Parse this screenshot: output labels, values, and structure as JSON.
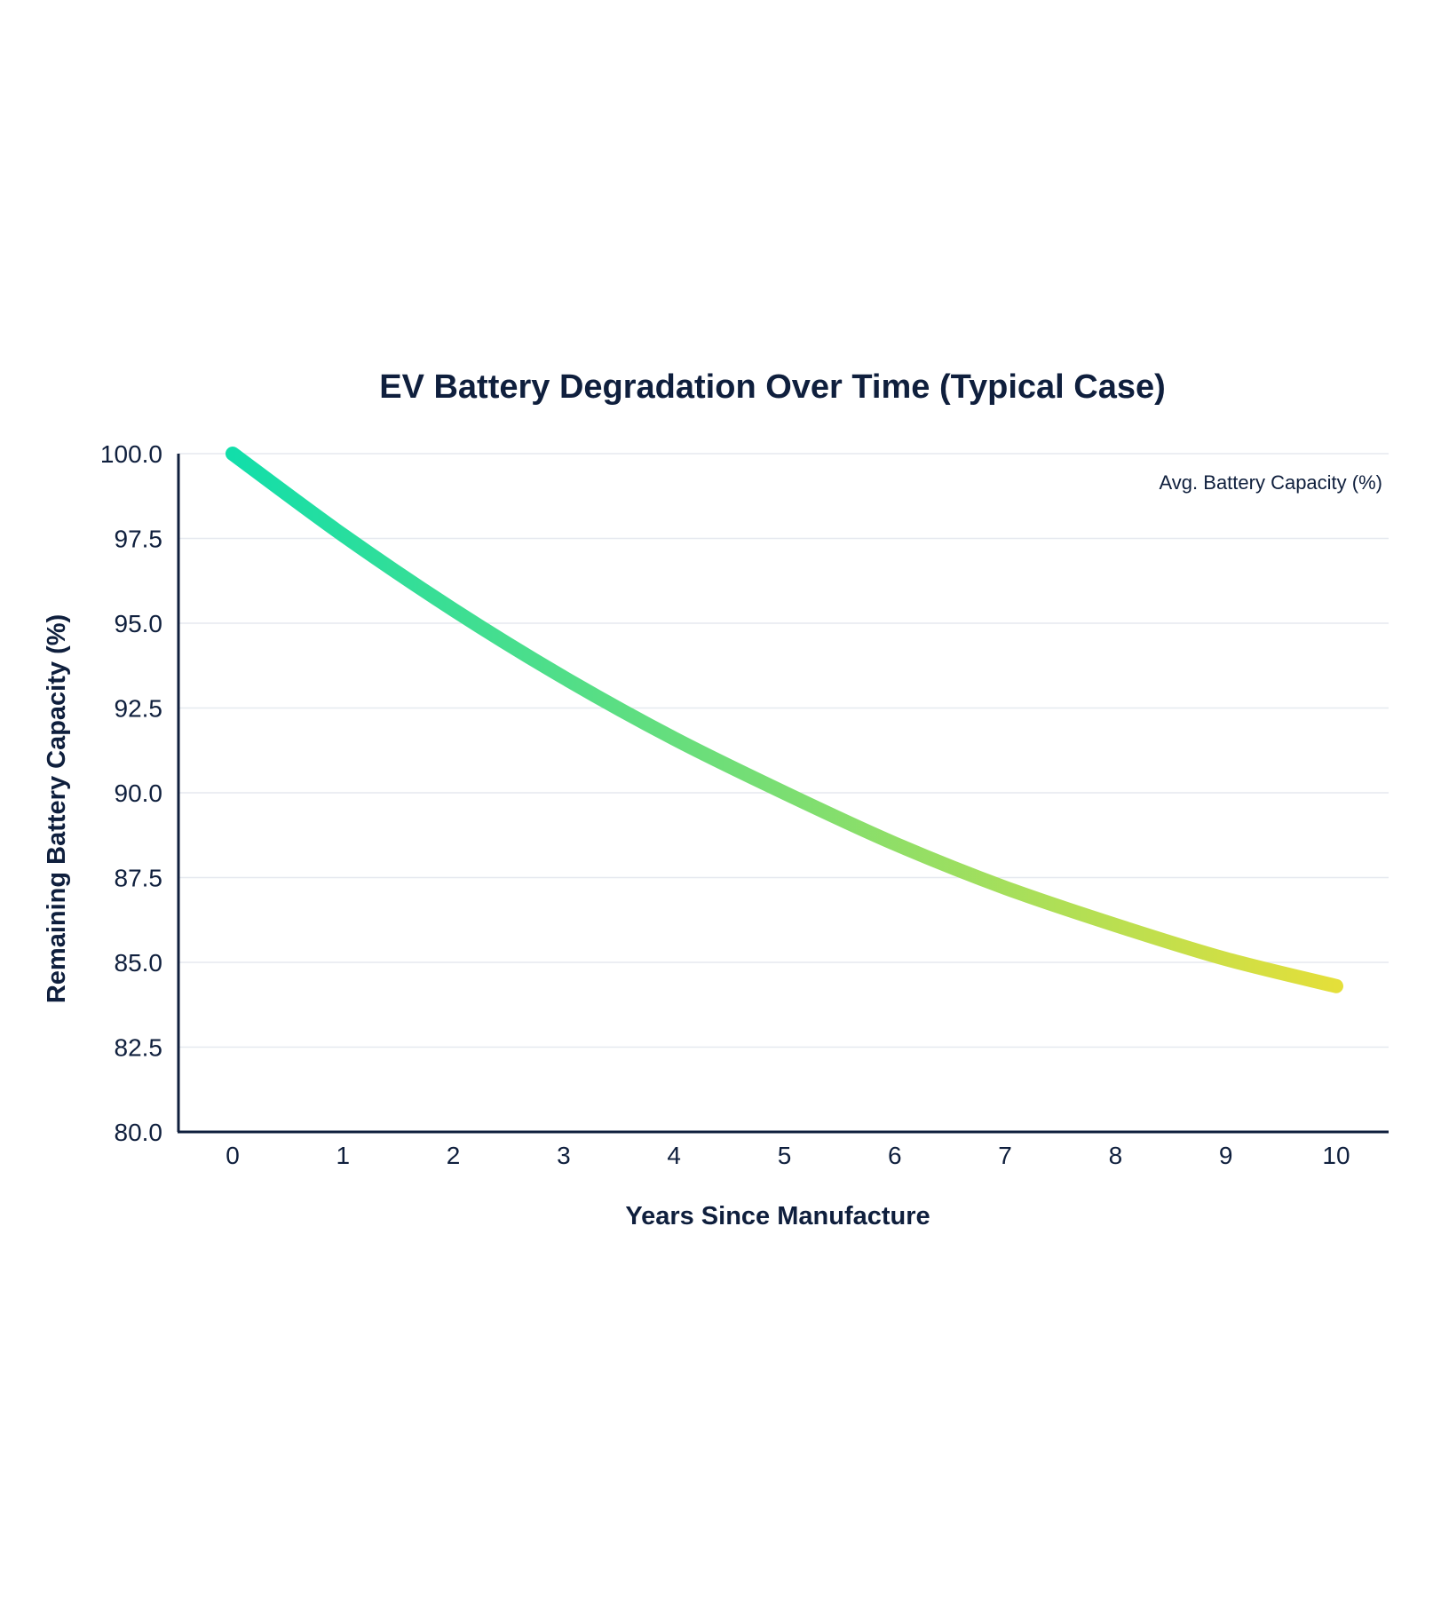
{
  "chart_data": {
    "type": "line",
    "title": "EV Battery Degradation Over Time (Typical Case)",
    "xlabel": "Years Since Manufacture",
    "ylabel": "Remaining Battery Capacity (%)",
    "x": [
      0,
      1,
      2,
      3,
      4,
      5,
      6,
      7,
      8,
      9,
      10
    ],
    "xlim": [
      -0.5,
      10.5
    ],
    "ylim": [
      80,
      100
    ],
    "x_ticks": [
      "0",
      "1",
      "2",
      "3",
      "4",
      "5",
      "6",
      "7",
      "8",
      "9",
      "10"
    ],
    "y_ticks": [
      "80.0",
      "82.5",
      "85.0",
      "87.5",
      "90.0",
      "92.5",
      "95.0",
      "97.5",
      "100.0"
    ],
    "y_tick_values": [
      80,
      82.5,
      85,
      87.5,
      90,
      92.5,
      95,
      97.5,
      100
    ],
    "series": [
      {
        "name": "Avg. Battery Capacity (%)",
        "values": [
          100.0,
          97.6,
          95.4,
          93.4,
          91.6,
          90.0,
          88.5,
          87.2,
          86.1,
          85.1,
          84.3
        ]
      }
    ],
    "grid": true,
    "legend_position": "top-right",
    "colors": {
      "text": "#0f1f3d",
      "axis": "#0f1f3d",
      "grid": "#e6e9ef",
      "gradient_start": "#12deaa",
      "gradient_end": "#e4df3a"
    }
  }
}
